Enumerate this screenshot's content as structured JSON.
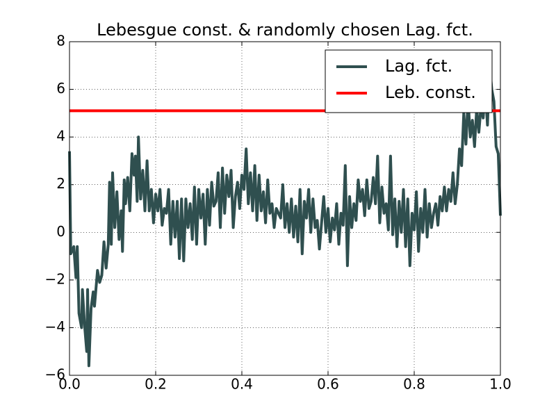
{
  "chart_data": {
    "type": "line",
    "title": "Lebesgue const. & randomly chosen Lag. fct.",
    "xlim": [
      0,
      1
    ],
    "ylim": [
      -6,
      8
    ],
    "xticks": [
      {
        "value": 0,
        "label": "0.0"
      },
      {
        "value": 0.2,
        "label": "0.2"
      },
      {
        "value": 0.4,
        "label": "0.4"
      },
      {
        "value": 0.6,
        "label": "0.6"
      },
      {
        "value": 0.8,
        "label": "0.8"
      },
      {
        "value": 1,
        "label": "1.0"
      }
    ],
    "yticks": [
      {
        "value": -6,
        "label": "−6"
      },
      {
        "value": -4,
        "label": "−4"
      },
      {
        "value": -2,
        "label": "−2"
      },
      0,
      2,
      4,
      6,
      8
    ],
    "grid": true,
    "legend": "upper right",
    "series": [
      {
        "name": "Lag. fct.",
        "color": "#2f4f4f",
        "x": [
          0,
          0.003,
          0.01,
          0.015,
          0.018,
          0.022,
          0.028,
          0.03,
          0.035,
          0.04,
          0.042,
          0.045,
          0.05,
          0.055,
          0.058,
          0.065,
          0.07,
          0.075,
          0.08,
          0.085,
          0.09,
          0.093,
          0.097,
          0.1,
          0.105,
          0.11,
          0.115,
          0.12,
          0.123,
          0.127,
          0.13,
          0.135,
          0.14,
          0.145,
          0.15,
          0.153,
          0.157,
          0.16,
          0.165,
          0.17,
          0.175,
          0.18,
          0.185,
          0.19,
          0.195,
          0.2,
          0.205,
          0.21,
          0.215,
          0.22,
          0.225,
          0.23,
          0.235,
          0.24,
          0.245,
          0.25,
          0.255,
          0.26,
          0.265,
          0.27,
          0.275,
          0.28,
          0.285,
          0.29,
          0.295,
          0.3,
          0.305,
          0.31,
          0.315,
          0.32,
          0.325,
          0.33,
          0.335,
          0.34,
          0.345,
          0.35,
          0.355,
          0.36,
          0.365,
          0.37,
          0.375,
          0.38,
          0.385,
          0.39,
          0.395,
          0.4,
          0.405,
          0.41,
          0.415,
          0.42,
          0.425,
          0.43,
          0.435,
          0.44,
          0.445,
          0.45,
          0.455,
          0.46,
          0.465,
          0.47,
          0.475,
          0.48,
          0.49,
          0.495,
          0.5,
          0.505,
          0.51,
          0.515,
          0.52,
          0.525,
          0.53,
          0.535,
          0.54,
          0.545,
          0.55,
          0.555,
          0.56,
          0.565,
          0.57,
          0.575,
          0.58,
          0.585,
          0.59,
          0.595,
          0.6,
          0.605,
          0.61,
          0.615,
          0.62,
          0.625,
          0.63,
          0.635,
          0.64,
          0.645,
          0.65,
          0.655,
          0.66,
          0.665,
          0.67,
          0.675,
          0.68,
          0.685,
          0.69,
          0.695,
          0.7,
          0.705,
          0.71,
          0.715,
          0.72,
          0.725,
          0.73,
          0.735,
          0.74,
          0.745,
          0.75,
          0.755,
          0.76,
          0.765,
          0.77,
          0.775,
          0.78,
          0.785,
          0.79,
          0.795,
          0.8,
          0.805,
          0.81,
          0.815,
          0.82,
          0.825,
          0.83,
          0.835,
          0.84,
          0.845,
          0.85,
          0.855,
          0.86,
          0.865,
          0.87,
          0.875,
          0.88,
          0.885,
          0.89,
          0.895,
          0.9,
          0.905,
          0.91,
          0.915,
          0.92,
          0.925,
          0.93,
          0.935,
          0.94,
          0.945,
          0.95,
          0.955,
          0.96,
          0.965,
          0.97,
          0.975,
          0.98,
          0.985,
          0.99,
          0.995,
          1
        ],
        "values": [
          3.4,
          -0.9,
          -0.6,
          -1.9,
          -0.6,
          -3.4,
          -4,
          -2.4,
          -3.9,
          -5,
          -2.4,
          -5.6,
          -3.2,
          -2.5,
          -3.1,
          -1.6,
          -2.1,
          -1.8,
          -0.4,
          -1.5,
          -0.5,
          2.1,
          -0.5,
          2.5,
          0.2,
          1.7,
          -0.3,
          0.9,
          -0.8,
          2.2,
          1.2,
          2.3,
          0.9,
          3.3,
          2.4,
          3.2,
          1.3,
          4,
          1.4,
          2.6,
          0.9,
          3,
          0.9,
          1.8,
          0.4,
          1.6,
          0.9,
          1.8,
          0.3,
          1,
          0.8,
          1.8,
          -0.5,
          1.3,
          -0.2,
          1.3,
          -1.1,
          1.4,
          -1.2,
          1.4,
          0.2,
          1.2,
          -0.3,
          1.9,
          -0.5,
          1.8,
          0.6,
          1.6,
          -0.5,
          1.8,
          0.3,
          2.1,
          1.1,
          1.3,
          2.5,
          0.2,
          2.7,
          0.8,
          2.4,
          1.5,
          2.6,
          0.2,
          1.5,
          2.1,
          1,
          2.4,
          1.8,
          3.5,
          1.2,
          2.5,
          0.9,
          2.8,
          0.5,
          2.4,
          0.9,
          1.7,
          0.4,
          2.2,
          0.8,
          1.2,
          0.2,
          1,
          0.6,
          2,
          0.2,
          1.2,
          0,
          1.4,
          -0.2,
          1.1,
          -0.4,
          1.8,
          -0.9,
          1.3,
          0.6,
          1.8,
          0,
          1.4,
          0.2,
          0.5,
          -0.7,
          0.4,
          1.5,
          0,
          1,
          -0.4,
          0.6,
          0.1,
          1.2,
          -0.5,
          0.8,
          0.3,
          2.8,
          -1.4,
          1.5,
          0.2,
          1.2,
          0.5,
          2.2,
          1.3,
          1.8,
          0.7,
          2.2,
          1,
          1.3,
          2.3,
          1.2,
          3.2,
          0.4,
          1.9,
          0.8,
          1.2,
          0.1,
          3.2,
          -0.1,
          1.4,
          -0.6,
          1.3,
          0,
          1.8,
          -0.6,
          1.4,
          -1.4,
          0.8,
          0.1,
          1.7,
          -0.8,
          1,
          0,
          1.8,
          -0.2,
          1.2,
          0.2,
          0.8,
          1.2,
          0.3,
          1.5,
          0.9,
          1.9,
          0.9,
          1.8,
          1.3,
          2.5,
          1.2,
          2,
          3.5,
          2.8,
          5,
          3.7,
          5.6,
          4,
          4.7,
          3.6,
          5.2,
          4.2,
          5.3,
          4.8,
          6,
          4.5,
          7,
          6,
          5.5,
          3.6,
          3.3,
          0.7
        ]
      },
      {
        "name": "Leb. const.",
        "color": "#ff0000",
        "x": [
          0,
          1
        ],
        "values": [
          5.1,
          5.1
        ]
      }
    ]
  }
}
